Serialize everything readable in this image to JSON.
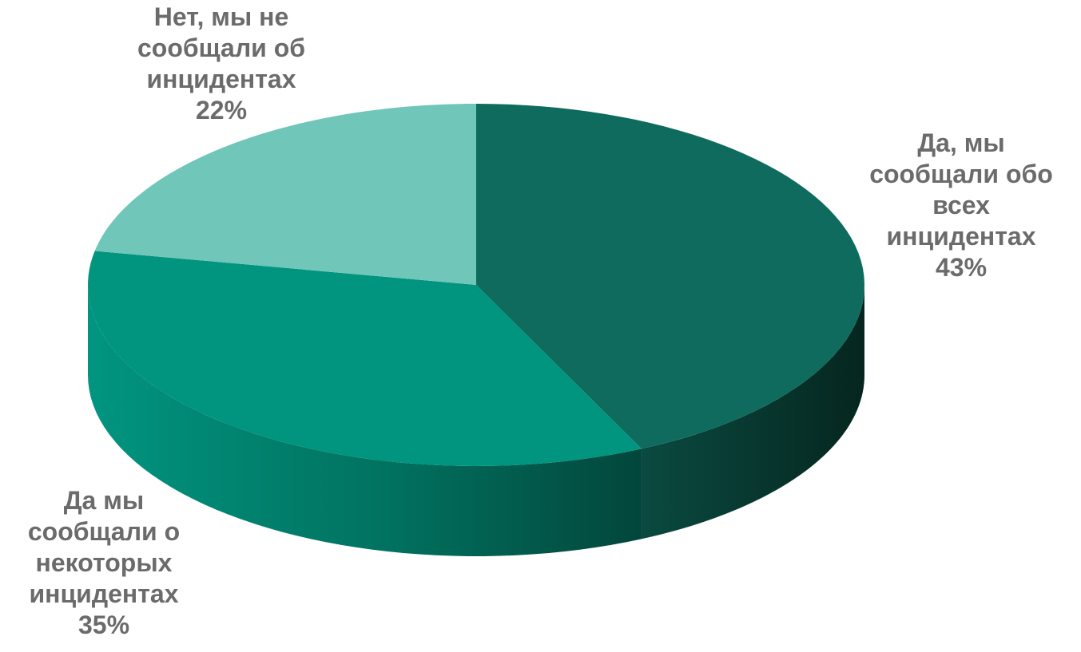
{
  "chart_data": {
    "type": "pie",
    "three_d": true,
    "title": "",
    "start_angle_deg": 0,
    "direction": "clockwise",
    "slices": [
      {
        "label_lines": [
          "Да, мы",
          "сообщали обо",
          "всех",
          "инцидентах"
        ],
        "value": 43,
        "value_label": "43%",
        "color": "#0e6b5e",
        "side_color": "#083e35"
      },
      {
        "label_lines": [
          "Да мы",
          "сообщали о",
          "некоторых",
          "инцидентах"
        ],
        "value": 35,
        "value_label": "35%",
        "color": "#019580",
        "side_color": "#017262"
      },
      {
        "label_lines": [
          "Нет, мы не",
          "сообщали об",
          "инцидентах"
        ],
        "value": 22,
        "value_label": "22%",
        "color": "#70c6b8",
        "side_color": "#4f9f92"
      }
    ]
  }
}
